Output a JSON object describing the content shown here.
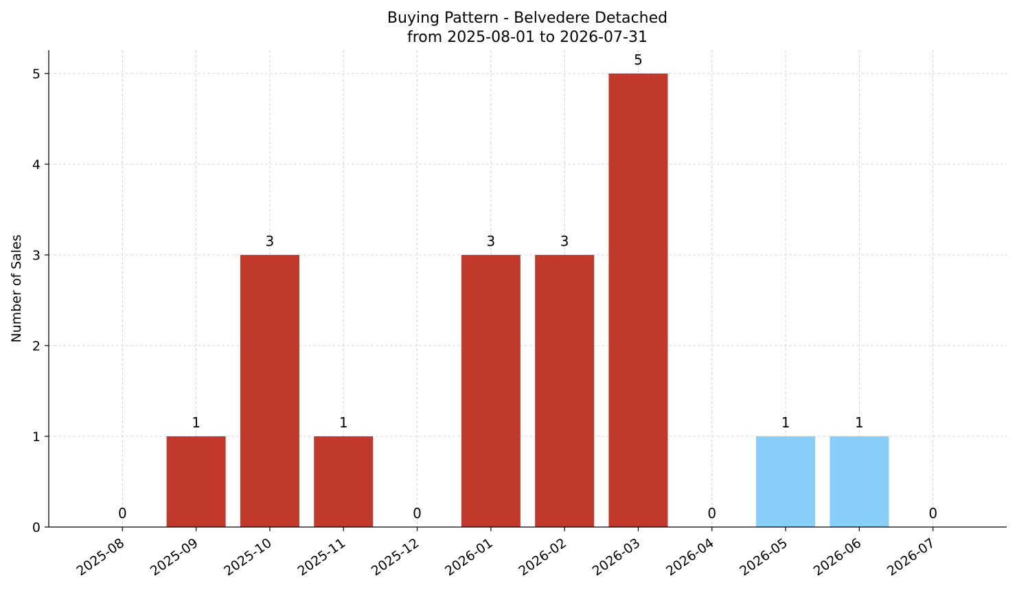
{
  "chart_data": {
    "type": "bar",
    "title": "Buying Pattern - Belvedere Detached",
    "subtitle": "from 2025-08-01 to 2026-07-31",
    "xlabel": "",
    "ylabel": "Number of Sales",
    "categories": [
      "2025-08",
      "2025-09",
      "2025-10",
      "2025-11",
      "2025-12",
      "2026-01",
      "2026-02",
      "2026-03",
      "2026-04",
      "2026-05",
      "2026-06",
      "2026-07"
    ],
    "values": [
      0,
      1,
      3,
      1,
      0,
      3,
      3,
      5,
      0,
      1,
      1,
      0
    ],
    "value_labels": [
      "0",
      "1",
      "3",
      "1",
      "0",
      "3",
      "3",
      "5",
      "0",
      "1",
      "1",
      "0"
    ],
    "bar_colors": [
      "#c0392b",
      "#c0392b",
      "#c0392b",
      "#c0392b",
      "#c0392b",
      "#c0392b",
      "#c0392b",
      "#c0392b",
      "#c0392b",
      "#87cefa",
      "#87cefa",
      "#87cefa"
    ],
    "yticks": [
      0,
      1,
      2,
      3,
      4,
      5
    ],
    "ylim": [
      0,
      5.25
    ],
    "grid": true
  }
}
